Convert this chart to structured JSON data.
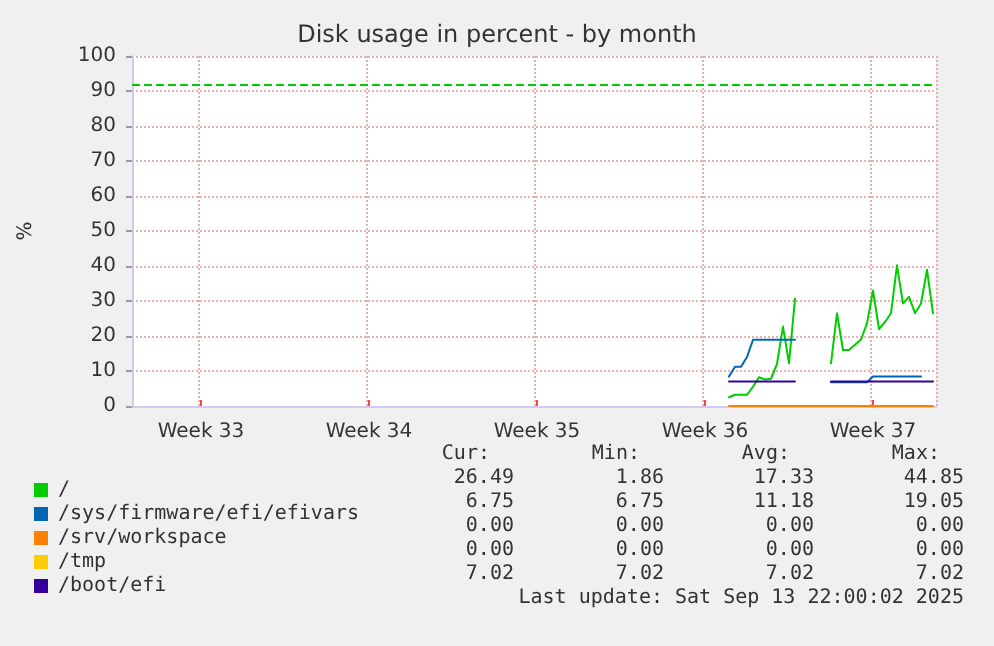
{
  "chart_data": {
    "type": "line",
    "title": "Disk usage in percent - by month",
    "ylabel": "%",
    "categories": [
      null,
      null,
      null,
      null,
      null,
      null,
      null,
      null,
      null,
      null,
      null,
      "Week 33",
      null,
      null,
      null,
      null,
      null,
      null,
      null,
      null,
      null,
      null,
      null,
      null,
      null,
      null,
      null,
      null,
      null,
      null,
      null,
      null,
      null,
      null,
      null,
      null,
      null,
      null,
      null,
      "Week 34",
      null,
      null,
      null,
      null,
      null,
      null,
      null,
      null,
      null,
      null,
      null,
      null,
      null,
      null,
      null,
      null,
      null,
      null,
      null,
      null,
      null,
      null,
      null,
      null,
      null,
      null,
      null,
      "Week 35",
      null,
      null,
      null,
      null,
      null,
      null,
      null,
      null,
      null,
      null,
      null,
      null,
      null,
      null,
      null,
      null,
      null,
      null,
      null,
      null,
      null,
      null,
      null,
      null,
      null,
      null,
      null,
      "Week 36",
      null,
      null,
      null,
      null,
      null,
      null,
      null,
      null,
      null,
      null,
      null,
      null,
      null,
      null,
      null,
      null,
      null,
      null,
      null,
      null,
      null,
      null,
      null,
      null,
      null,
      null,
      null,
      "Week 37",
      null,
      null,
      null,
      null,
      null,
      null,
      null,
      null,
      null,
      null
    ],
    "ylim": [
      0,
      100
    ],
    "yticks": [
      0,
      10,
      20,
      30,
      40,
      50,
      60,
      70,
      80,
      90,
      100
    ],
    "grid": true,
    "legend": "bottom left",
    "line_style": "solid",
    "marker": "none",
    "series": [
      {
        "name": "/",
        "color": "#00cc00",
        "values": [
          null,
          null,
          null,
          null,
          null,
          null,
          null,
          null,
          null,
          null,
          null,
          null,
          null,
          null,
          null,
          null,
          null,
          null,
          null,
          null,
          null,
          null,
          null,
          null,
          null,
          null,
          null,
          null,
          null,
          null,
          null,
          null,
          null,
          null,
          null,
          null,
          null,
          null,
          null,
          null,
          null,
          null,
          null,
          null,
          null,
          null,
          null,
          null,
          null,
          null,
          null,
          null,
          null,
          null,
          null,
          null,
          null,
          null,
          null,
          null,
          null,
          null,
          null,
          null,
          null,
          null,
          null,
          null,
          null,
          null,
          null,
          null,
          null,
          null,
          null,
          null,
          null,
          null,
          null,
          null,
          null,
          null,
          null,
          null,
          null,
          null,
          null,
          null,
          null,
          null,
          null,
          null,
          null,
          null,
          null,
          null,
          null,
          null,
          null,
          2.5,
          3.2,
          3.2,
          3.2,
          5.5,
          8.2,
          7.6,
          7.8,
          12,
          22.7,
          12.2,
          30.7,
          null,
          null,
          null,
          null,
          null,
          12.2,
          26.5,
          16,
          16,
          17.5,
          19,
          23.6,
          33,
          22,
          24,
          26.5,
          40.2,
          29.3,
          31.2,
          26.5,
          29.3,
          38.9,
          26.5
        ]
      },
      {
        "name": "/sys/firmware/efi/efivars",
        "color": "#0066b3",
        "values": [
          null,
          null,
          null,
          null,
          null,
          null,
          null,
          null,
          null,
          null,
          null,
          null,
          null,
          null,
          null,
          null,
          null,
          null,
          null,
          null,
          null,
          null,
          null,
          null,
          null,
          null,
          null,
          null,
          null,
          null,
          null,
          null,
          null,
          null,
          null,
          null,
          null,
          null,
          null,
          null,
          null,
          null,
          null,
          null,
          null,
          null,
          null,
          null,
          null,
          null,
          null,
          null,
          null,
          null,
          null,
          null,
          null,
          null,
          null,
          null,
          null,
          null,
          null,
          null,
          null,
          null,
          null,
          null,
          null,
          null,
          null,
          null,
          null,
          null,
          null,
          null,
          null,
          null,
          null,
          null,
          null,
          null,
          null,
          null,
          null,
          null,
          null,
          null,
          null,
          null,
          null,
          null,
          null,
          null,
          null,
          null,
          null,
          null,
          null,
          8.4,
          11.2,
          11.2,
          14,
          18.9,
          18.9,
          18.9,
          18.9,
          18.9,
          18.9,
          18.9,
          18.9,
          null,
          null,
          null,
          null,
          null,
          6.8,
          6.8,
          6.8,
          6.8,
          6.8,
          6.8,
          6.8,
          8.4,
          8.4,
          8.4,
          8.4,
          8.4,
          8.4,
          8.4,
          8.4,
          8.4,
          null,
          null
        ]
      },
      {
        "name": "/srv/workspace",
        "color": "#ff8000",
        "values": [
          null,
          null,
          null,
          null,
          null,
          null,
          null,
          null,
          null,
          null,
          null,
          null,
          null,
          null,
          null,
          null,
          null,
          null,
          null,
          null,
          null,
          null,
          null,
          null,
          null,
          null,
          null,
          null,
          null,
          null,
          null,
          null,
          null,
          null,
          null,
          null,
          null,
          null,
          null,
          null,
          null,
          null,
          null,
          null,
          null,
          null,
          null,
          null,
          null,
          null,
          null,
          null,
          null,
          null,
          null,
          null,
          null,
          null,
          null,
          null,
          null,
          null,
          null,
          null,
          null,
          null,
          null,
          null,
          null,
          null,
          null,
          null,
          null,
          null,
          null,
          null,
          null,
          null,
          null,
          null,
          null,
          null,
          null,
          null,
          null,
          null,
          null,
          null,
          null,
          null,
          null,
          null,
          null,
          null,
          null,
          null,
          null,
          null,
          null,
          0,
          0,
          0,
          0,
          0,
          0,
          0,
          0,
          0,
          0,
          0,
          0,
          0,
          0,
          0,
          0,
          0,
          0,
          0,
          0,
          0,
          0,
          0,
          0,
          0,
          0,
          0,
          0,
          0,
          0,
          0,
          0,
          0,
          0,
          0
        ]
      },
      {
        "name": "/tmp",
        "color": "#ffcc00",
        "values": [
          null,
          null,
          null,
          null,
          null,
          null,
          null,
          null,
          null,
          null,
          null,
          null,
          null,
          null,
          null,
          null,
          null,
          null,
          null,
          null,
          null,
          null,
          null,
          null,
          null,
          null,
          null,
          null,
          null,
          null,
          null,
          null,
          null,
          null,
          null,
          null,
          null,
          null,
          null,
          null,
          null,
          null,
          null,
          null,
          null,
          null,
          null,
          null,
          null,
          null,
          null,
          null,
          null,
          null,
          null,
          null,
          null,
          null,
          null,
          null,
          null,
          null,
          null,
          null,
          null,
          null,
          null,
          null,
          null,
          null,
          null,
          null,
          null,
          null,
          null,
          null,
          null,
          null,
          null,
          null,
          null,
          null,
          null,
          null,
          null,
          null,
          null,
          null,
          null,
          null,
          null,
          null,
          null,
          null,
          null,
          null,
          null,
          null,
          null,
          null,
          null,
          null,
          null,
          null,
          null,
          null,
          null,
          null,
          null,
          null,
          null,
          null,
          null,
          null,
          null,
          null,
          null,
          null,
          null,
          null,
          null,
          null,
          null,
          null,
          null,
          null,
          null,
          null,
          null,
          null,
          null,
          null,
          null,
          null
        ]
      },
      {
        "name": "/boot/efi",
        "color": "#330099",
        "values": [
          null,
          null,
          null,
          null,
          null,
          null,
          null,
          null,
          null,
          null,
          null,
          null,
          null,
          null,
          null,
          null,
          null,
          null,
          null,
          null,
          null,
          null,
          null,
          null,
          null,
          null,
          null,
          null,
          null,
          null,
          null,
          null,
          null,
          null,
          null,
          null,
          null,
          null,
          null,
          null,
          null,
          null,
          null,
          null,
          null,
          null,
          null,
          null,
          null,
          null,
          null,
          null,
          null,
          null,
          null,
          null,
          null,
          null,
          null,
          null,
          null,
          null,
          null,
          null,
          null,
          null,
          null,
          null,
          null,
          null,
          null,
          null,
          null,
          null,
          null,
          null,
          null,
          null,
          null,
          null,
          null,
          null,
          null,
          null,
          null,
          null,
          null,
          null,
          null,
          null,
          null,
          null,
          null,
          null,
          null,
          null,
          null,
          null,
          null,
          7,
          7,
          7,
          7,
          7,
          7,
          7,
          7,
          7,
          7,
          7,
          7,
          null,
          null,
          null,
          null,
          null,
          7,
          7,
          7,
          7,
          7,
          7,
          7,
          7,
          7,
          7,
          7,
          7,
          7,
          7,
          7,
          7,
          7,
          7
        ]
      }
    ],
    "ref_lines": [
      {
        "axis": "y",
        "value": 92,
        "label": null,
        "color": "#00cc00",
        "line_style": "dashed"
      }
    ],
    "annotations": [
      "Cur:",
      "Min:",
      "Avg:",
      "Max:",
      "26.49",
      "1.86",
      "17.33",
      "44.85",
      "6.75",
      "6.75",
      "11.18",
      "19.05",
      "0.00",
      "0.00",
      "0.00",
      "0.00",
      "0.00",
      "0.00",
      "0.00",
      "0.00",
      "7.02",
      "7.02",
      "7.02",
      "7.02",
      "Last update: Sat Sep 13 22:00:02 2025"
    ]
  }
}
